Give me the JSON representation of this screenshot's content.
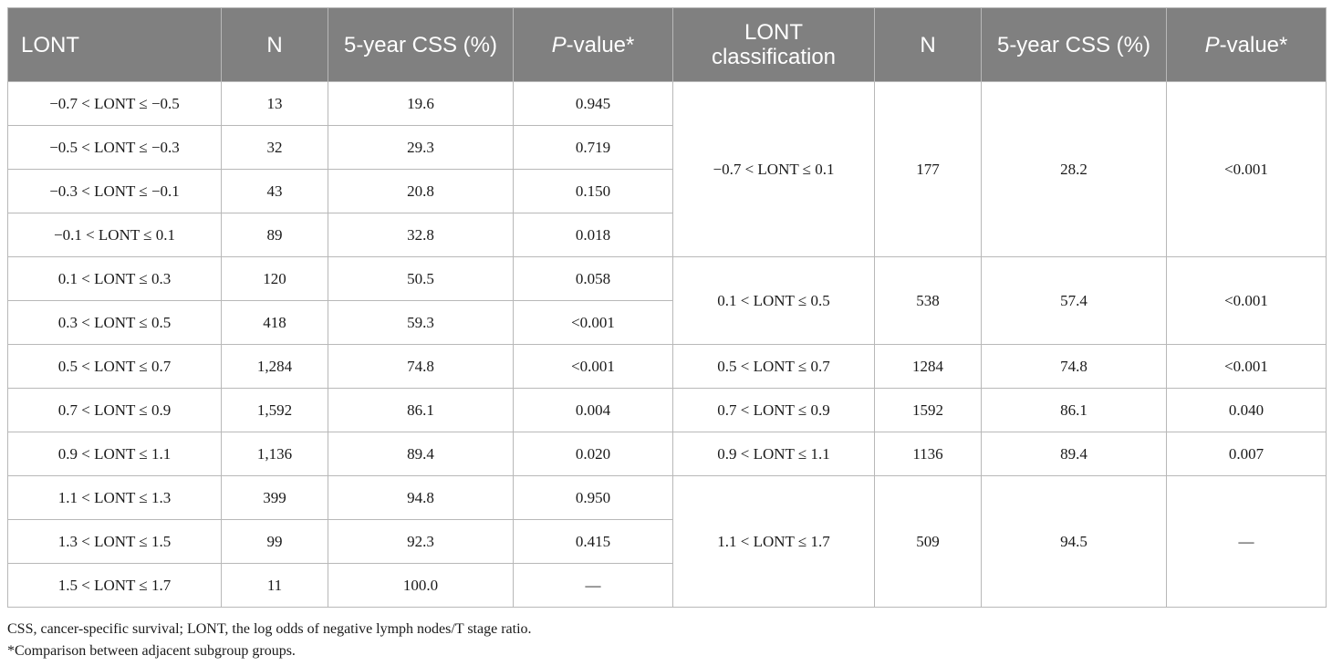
{
  "headers": {
    "lont": "LONT",
    "n": "N",
    "css": "5-year CSS (%)",
    "p_italic": "P",
    "p_rest": "-value*",
    "class_line1": "LONT",
    "class_line2": "classification",
    "n2": "N",
    "css2": "5-year CSS (%)",
    "p2_italic": "P",
    "p2_rest": "-value*"
  },
  "rows": [
    {
      "lont": "−0.7 < LONT ≤ −0.5",
      "n": "13",
      "css": "19.6",
      "p": "0.945"
    },
    {
      "lont": "−0.5 < LONT ≤ −0.3",
      "n": "32",
      "css": "29.3",
      "p": "0.719"
    },
    {
      "lont": "−0.3 < LONT ≤ −0.1",
      "n": "43",
      "css": "20.8",
      "p": "0.150"
    },
    {
      "lont": "−0.1 < LONT ≤ 0.1",
      "n": "89",
      "css": "32.8",
      "p": "0.018"
    },
    {
      "lont": "0.1 < LONT ≤ 0.3",
      "n": "120",
      "css": "50.5",
      "p": "0.058"
    },
    {
      "lont": "0.3 < LONT ≤ 0.5",
      "n": "418",
      "css": "59.3",
      "p": "<0.001"
    },
    {
      "lont": "0.5 < LONT ≤ 0.7",
      "n": "1,284",
      "css": "74.8",
      "p": "<0.001"
    },
    {
      "lont": "0.7 < LONT ≤ 0.9",
      "n": "1,592",
      "css": "86.1",
      "p": "0.004"
    },
    {
      "lont": "0.9 < LONT ≤ 1.1",
      "n": "1,136",
      "css": "89.4",
      "p": "0.020"
    },
    {
      "lont": "1.1 < LONT ≤ 1.3",
      "n": "399",
      "css": "94.8",
      "p": "0.950"
    },
    {
      "lont": "1.3 < LONT ≤ 1.5",
      "n": "99",
      "css": "92.3",
      "p": "0.415"
    },
    {
      "lont": "1.5 < LONT ≤ 1.7",
      "n": "11",
      "css": "100.0",
      "p": "—"
    }
  ],
  "groups": [
    {
      "label": "−0.7 < LONT ≤ 0.1",
      "n": "177",
      "css": "28.2",
      "p": "<0.001"
    },
    {
      "label": "0.1 < LONT ≤ 0.5",
      "n": "538",
      "css": "57.4",
      "p": "<0.001"
    },
    {
      "label": "0.5 < LONT ≤ 0.7",
      "n": "1284",
      "css": "74.8",
      "p": "<0.001"
    },
    {
      "label": "0.7 < LONT ≤ 0.9",
      "n": "1592",
      "css": "86.1",
      "p": "0.040"
    },
    {
      "label": "0.9 < LONT ≤ 1.1",
      "n": "1136",
      "css": "89.4",
      "p": "0.007"
    },
    {
      "label": "1.1 < LONT ≤ 1.7",
      "n": "509",
      "css": "94.5",
      "p": "—"
    }
  ],
  "footnotes": {
    "abbrev": "CSS, cancer-specific survival; LONT, the log odds of negative lymph nodes/T stage ratio.",
    "star": "*Comparison between adjacent subgroup groups."
  }
}
